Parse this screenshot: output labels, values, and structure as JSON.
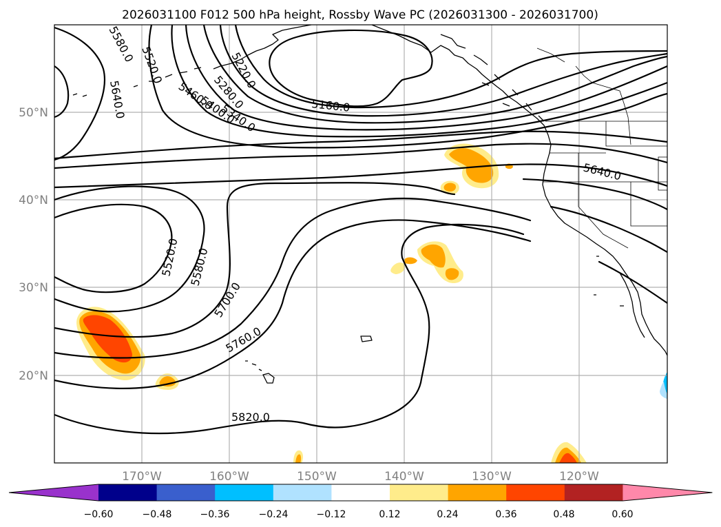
{
  "title": "2026031100 F012 500 hPa height, Rossby Wave PC (2026031300 - 2026031700)",
  "map": {
    "projection": "equirectangular",
    "lon_range": [
      -180,
      -110
    ],
    "lat_range": [
      10,
      60
    ],
    "grid": true,
    "lon_ticks": [
      "170°W",
      "160°W",
      "150°W",
      "140°W",
      "130°W",
      "120°W"
    ],
    "lat_ticks": [
      "50°N",
      "40°N",
      "30°N",
      "20°N"
    ],
    "contour_labels": [
      "5580.0",
      "5520.0",
      "5640.0",
      "5460.0",
      "5400.0",
      "5340.0",
      "5280.0",
      "5220.0",
      "5160.0",
      "5640.0",
      "5520.0",
      "5580.0",
      "5700.0",
      "5760.0",
      "5820.0"
    ],
    "features": [
      "Pacific coastline",
      "Alaska",
      "Hawaii",
      "US state borders"
    ]
  },
  "colorbar": {
    "orientation": "horizontal",
    "extend": "both",
    "tick_labels": [
      "−0.60",
      "−0.48",
      "−0.36",
      "−0.24",
      "−0.12",
      "0.12",
      "0.24",
      "0.36",
      "0.48",
      "0.60"
    ],
    "colors": [
      "#9932cc",
      "#00008b",
      "#3a5fcd",
      "#00bfff",
      "#b0e2ff",
      "#ffffff",
      "#ffec8b",
      "#ffa500",
      "#ff4500",
      "#b22222",
      "#ff88aa"
    ]
  },
  "shading_colors": {
    "c012": "#ffec8b",
    "c024": "#ffa500",
    "c036": "#ff4500",
    "neg": "#00bfff",
    "neg_light": "#b0e2ff"
  }
}
